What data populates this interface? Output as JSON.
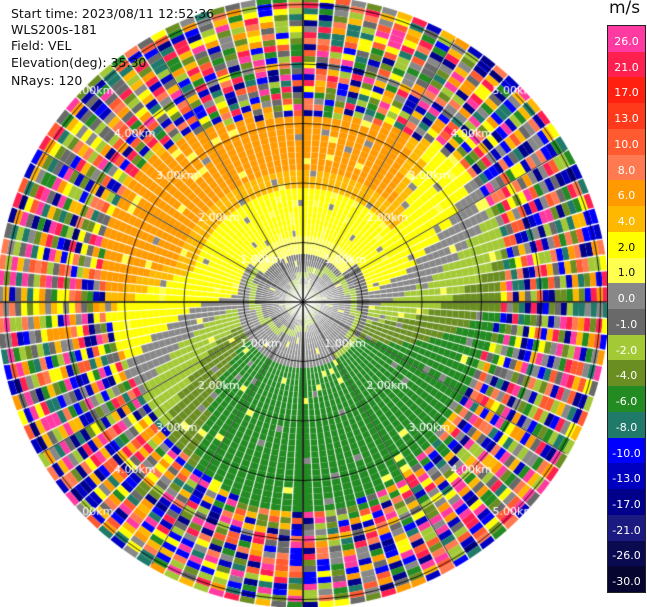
{
  "info": {
    "start_time": "Start time: 2023/08/11 12:52:36",
    "station": "WLS200s-181",
    "field": "Field: VEL",
    "elevation": "Elevation(deg): 35.30",
    "nrays": "NRays: 120"
  },
  "colorbar": {
    "unit": "m/s",
    "labels": [
      "26.0",
      "21.0",
      "17.0",
      "13.0",
      "10.0",
      "8.0",
      "6.0",
      "4.0",
      "2.0",
      "1.0",
      "0.0",
      "-1.0",
      "-2.0",
      "-4.0",
      "-6.0",
      "-8.0",
      "-10.0",
      "-13.0",
      "-17.0",
      "-21.0",
      "-26.0",
      "-30.0"
    ],
    "colors": [
      "#ff3aa0",
      "#ff2050",
      "#ff2010",
      "#ff3a1a",
      "#ff5a30",
      "#ff7a50",
      "#ff9a00",
      "#ffb800",
      "#ffff00",
      "#ffff50",
      "#888888",
      "#696969",
      "#a3c936",
      "#6b8e23",
      "#228b22",
      "#1f7a6a",
      "#0000ff",
      "#0000c0",
      "#00008b",
      "#1a1a80",
      "#0a0a50",
      "#050530"
    ]
  },
  "rings": {
    "labels": [
      "1.00km",
      "2.00km",
      "3.00km",
      "4.00km",
      "5.00km"
    ]
  }
}
